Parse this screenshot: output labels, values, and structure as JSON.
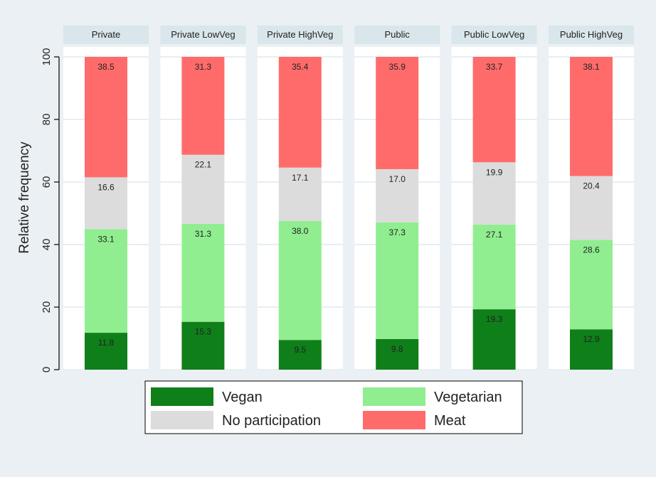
{
  "chart_data": {
    "type": "bar",
    "stacked": true,
    "percent_stacked": true,
    "panels": [
      "Private",
      "Private LowVeg",
      "Private HighVeg",
      "Public",
      "Public LowVeg",
      "Public HighVeg"
    ],
    "series": [
      {
        "name": "Vegan",
        "color": "#0f7f1a",
        "values": [
          11.8,
          15.3,
          9.5,
          9.8,
          19.3,
          12.9
        ]
      },
      {
        "name": "Vegetarian",
        "color": "#90ee90",
        "values": [
          33.1,
          31.3,
          38.0,
          37.3,
          27.1,
          28.6
        ]
      },
      {
        "name": "No participation",
        "color": "#dcdcdc",
        "values": [
          16.6,
          22.1,
          17.1,
          17.0,
          19.9,
          20.4
        ]
      },
      {
        "name": "Meat",
        "color": "#ff6b6b",
        "values": [
          38.5,
          31.3,
          35.4,
          35.9,
          33.7,
          38.1
        ]
      }
    ],
    "data_labels": [
      [
        "11.8",
        "15.3",
        "9.5",
        "9.8",
        "19.3",
        "12.9"
      ],
      [
        "33.1",
        "31.3",
        "38.0",
        "37.3",
        "27.1",
        "28.6"
      ],
      [
        "16.6",
        "22.1",
        "17.1",
        "17.0",
        "19.9",
        "20.4"
      ],
      [
        "38.5",
        "31.3",
        "35.4",
        "35.9",
        "33.7",
        "38.1"
      ]
    ],
    "ylabel": "Relative frequency",
    "ylim": [
      0,
      100
    ],
    "yticks": [
      0,
      20,
      40,
      60,
      80,
      100
    ],
    "ytick_labels": [
      "0",
      "20",
      "40",
      "60",
      "80",
      "100"
    ],
    "grid": true,
    "legend": {
      "position": "bottom",
      "entries": [
        {
          "name": "Vegan",
          "color": "#0f7f1a"
        },
        {
          "name": "Vegetarian",
          "color": "#90ee90"
        },
        {
          "name": "No participation",
          "color": "#dcdcdc"
        },
        {
          "name": "Meat",
          "color": "#ff6b6b"
        }
      ]
    },
    "colors": {
      "background": "#eaf0f3",
      "panel_background": "#ffffff",
      "panel_header": "#d9e6eb",
      "gridline": "#e8eef1",
      "axis": "#000000",
      "text": "#222222"
    }
  }
}
